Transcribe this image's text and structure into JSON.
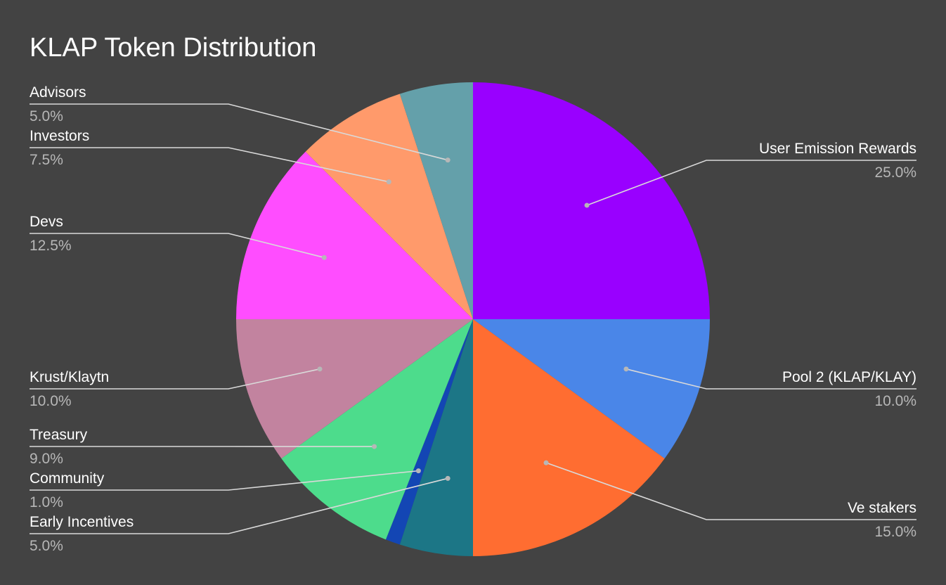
{
  "chart_data": {
    "type": "pie",
    "title": "KLAP Token Distribution",
    "background": "#434343",
    "slices": [
      {
        "label": "User Emission Rewards",
        "value": 25.0,
        "display": "25.0%",
        "color": "#9900ff"
      },
      {
        "label": "Pool 2 (KLAP/KLAY)",
        "value": 10.0,
        "display": "10.0%",
        "color": "#4a86e8"
      },
      {
        "label": "Ve stakers",
        "value": 15.0,
        "display": "15.0%",
        "color": "#ff6d31"
      },
      {
        "label": "Early Incentives",
        "value": 5.0,
        "display": "5.0%",
        "color": "#1c7686"
      },
      {
        "label": "Community",
        "value": 1.0,
        "display": "1.0%",
        "color": "#1346b4"
      },
      {
        "label": "Treasury",
        "value": 9.0,
        "display": "9.0%",
        "color": "#4ddc8c"
      },
      {
        "label": "Krust/Klaytn",
        "value": 10.0,
        "display": "10.0%",
        "color": "#c2839f"
      },
      {
        "label": "Devs",
        "value": 12.5,
        "display": "12.5%",
        "color": "#ff4dff"
      },
      {
        "label": "Investors",
        "value": 7.5,
        "display": "7.5%",
        "color": "#ff9a6b"
      },
      {
        "label": "Advisors",
        "value": 5.0,
        "display": "5.0%",
        "color": "#64a0aa"
      }
    ],
    "legend": "none"
  }
}
